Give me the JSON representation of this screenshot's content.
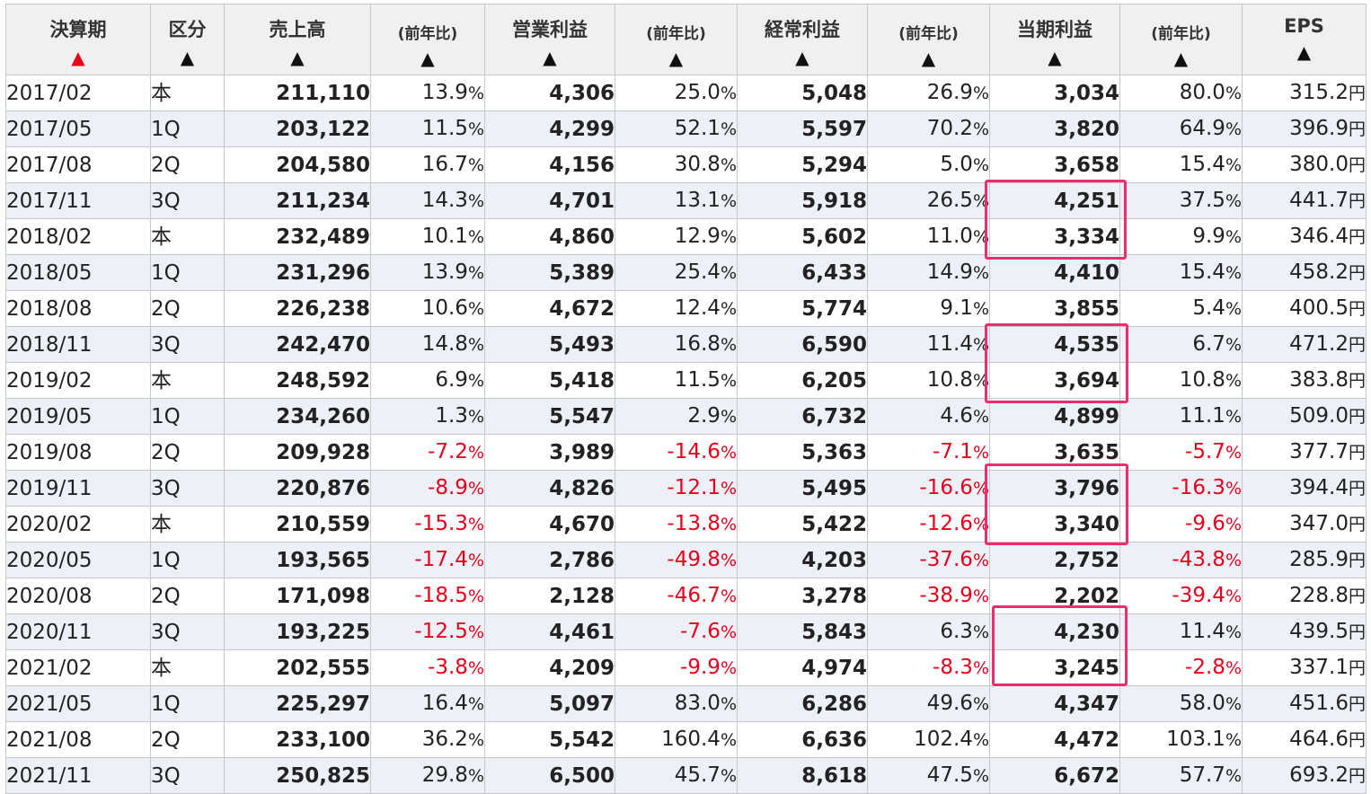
{
  "headers": {
    "period": "決算期",
    "kubun": "区分",
    "sales": "売上高",
    "sales_yoy": "(前年比)",
    "op_profit": "営業利益",
    "op_yoy": "(前年比)",
    "ord_profit": "経常利益",
    "ord_yoy": "(前年比)",
    "net_profit": "当期利益",
    "net_yoy": "(前年比)",
    "eps": "EPS",
    "sort_arrow": "▲"
  },
  "colors": {
    "negative": "#e5001c",
    "highlight": "#ef2d6e",
    "active_sort": "#e5001c"
  },
  "units": {
    "percent": "%",
    "yen": "円"
  },
  "rows": [
    {
      "period": "2017/02",
      "kubun": "本",
      "sales": "211,110",
      "sales_yoy": "13.9",
      "op": "4,306",
      "op_yoy": "25.0",
      "ord": "5,048",
      "ord_yoy": "26.9",
      "net": "3,034",
      "net_yoy": "80.0",
      "eps": "315.2"
    },
    {
      "period": "2017/05",
      "kubun": "1Q",
      "sales": "203,122",
      "sales_yoy": "11.5",
      "op": "4,299",
      "op_yoy": "52.1",
      "ord": "5,597",
      "ord_yoy": "70.2",
      "net": "3,820",
      "net_yoy": "64.9",
      "eps": "396.9"
    },
    {
      "period": "2017/08",
      "kubun": "2Q",
      "sales": "204,580",
      "sales_yoy": "16.7",
      "op": "4,156",
      "op_yoy": "30.8",
      "ord": "5,294",
      "ord_yoy": "5.0",
      "net": "3,658",
      "net_yoy": "15.4",
      "eps": "380.0"
    },
    {
      "period": "2017/11",
      "kubun": "3Q",
      "sales": "211,234",
      "sales_yoy": "14.3",
      "op": "4,701",
      "op_yoy": "13.1",
      "ord": "5,918",
      "ord_yoy": "26.5",
      "net": "4,251",
      "net_yoy": "37.5",
      "eps": "441.7"
    },
    {
      "period": "2018/02",
      "kubun": "本",
      "sales": "232,489",
      "sales_yoy": "10.1",
      "op": "4,860",
      "op_yoy": "12.9",
      "ord": "5,602",
      "ord_yoy": "11.0",
      "net": "3,334",
      "net_yoy": "9.9",
      "eps": "346.4"
    },
    {
      "period": "2018/05",
      "kubun": "1Q",
      "sales": "231,296",
      "sales_yoy": "13.9",
      "op": "5,389",
      "op_yoy": "25.4",
      "ord": "6,433",
      "ord_yoy": "14.9",
      "net": "4,410",
      "net_yoy": "15.4",
      "eps": "458.2"
    },
    {
      "period": "2018/08",
      "kubun": "2Q",
      "sales": "226,238",
      "sales_yoy": "10.6",
      "op": "4,672",
      "op_yoy": "12.4",
      "ord": "5,774",
      "ord_yoy": "9.1",
      "net": "3,855",
      "net_yoy": "5.4",
      "eps": "400.5"
    },
    {
      "period": "2018/11",
      "kubun": "3Q",
      "sales": "242,470",
      "sales_yoy": "14.8",
      "op": "5,493",
      "op_yoy": "16.8",
      "ord": "6,590",
      "ord_yoy": "11.4",
      "net": "4,535",
      "net_yoy": "6.7",
      "eps": "471.2"
    },
    {
      "period": "2019/02",
      "kubun": "本",
      "sales": "248,592",
      "sales_yoy": "6.9",
      "op": "5,418",
      "op_yoy": "11.5",
      "ord": "6,205",
      "ord_yoy": "10.8",
      "net": "3,694",
      "net_yoy": "10.8",
      "eps": "383.8"
    },
    {
      "period": "2019/05",
      "kubun": "1Q",
      "sales": "234,260",
      "sales_yoy": "1.3",
      "op": "5,547",
      "op_yoy": "2.9",
      "ord": "6,732",
      "ord_yoy": "4.6",
      "net": "4,899",
      "net_yoy": "11.1",
      "eps": "509.0"
    },
    {
      "period": "2019/08",
      "kubun": "2Q",
      "sales": "209,928",
      "sales_yoy": "-7.2",
      "op": "3,989",
      "op_yoy": "-14.6",
      "ord": "5,363",
      "ord_yoy": "-7.1",
      "net": "3,635",
      "net_yoy": "-5.7",
      "eps": "377.7"
    },
    {
      "period": "2019/11",
      "kubun": "3Q",
      "sales": "220,876",
      "sales_yoy": "-8.9",
      "op": "4,826",
      "op_yoy": "-12.1",
      "ord": "5,495",
      "ord_yoy": "-16.6",
      "net": "3,796",
      "net_yoy": "-16.3",
      "eps": "394.4"
    },
    {
      "period": "2020/02",
      "kubun": "本",
      "sales": "210,559",
      "sales_yoy": "-15.3",
      "op": "4,670",
      "op_yoy": "-13.8",
      "ord": "5,422",
      "ord_yoy": "-12.6",
      "net": "3,340",
      "net_yoy": "-9.6",
      "eps": "347.0"
    },
    {
      "period": "2020/05",
      "kubun": "1Q",
      "sales": "193,565",
      "sales_yoy": "-17.4",
      "op": "2,786",
      "op_yoy": "-49.8",
      "ord": "4,203",
      "ord_yoy": "-37.6",
      "net": "2,752",
      "net_yoy": "-43.8",
      "eps": "285.9"
    },
    {
      "period": "2020/08",
      "kubun": "2Q",
      "sales": "171,098",
      "sales_yoy": "-18.5",
      "op": "2,128",
      "op_yoy": "-46.7",
      "ord": "3,278",
      "ord_yoy": "-38.9",
      "net": "2,202",
      "net_yoy": "-39.4",
      "eps": "228.8"
    },
    {
      "period": "2020/11",
      "kubun": "3Q",
      "sales": "193,225",
      "sales_yoy": "-12.5",
      "op": "4,461",
      "op_yoy": "-7.6",
      "ord": "5,843",
      "ord_yoy": "6.3",
      "net": "4,230",
      "net_yoy": "11.4",
      "eps": "439.5"
    },
    {
      "period": "2021/02",
      "kubun": "本",
      "sales": "202,555",
      "sales_yoy": "-3.8",
      "op": "4,209",
      "op_yoy": "-9.9",
      "ord": "4,974",
      "ord_yoy": "-8.3",
      "net": "3,245",
      "net_yoy": "-2.8",
      "eps": "337.1"
    },
    {
      "period": "2021/05",
      "kubun": "1Q",
      "sales": "225,297",
      "sales_yoy": "16.4",
      "op": "5,097",
      "op_yoy": "83.0",
      "ord": "6,286",
      "ord_yoy": "49.6",
      "net": "4,347",
      "net_yoy": "58.0",
      "eps": "451.6"
    },
    {
      "period": "2021/08",
      "kubun": "2Q",
      "sales": "233,100",
      "sales_yoy": "36.2",
      "op": "5,542",
      "op_yoy": "160.4",
      "ord": "6,636",
      "ord_yoy": "102.4",
      "net": "4,472",
      "net_yoy": "103.1",
      "eps": "464.6"
    },
    {
      "period": "2021/11",
      "kubun": "3Q",
      "sales": "250,825",
      "sales_yoy": "29.8",
      "op": "6,500",
      "op_yoy": "45.7",
      "ord": "8,618",
      "ord_yoy": "47.5",
      "net": "6,672",
      "net_yoy": "57.7",
      "eps": "693.2"
    }
  ],
  "highlights": [
    {
      "label": "highlight-2017-11-2018-02"
    },
    {
      "label": "highlight-2018-11-2019-02"
    },
    {
      "label": "highlight-2019-11-2020-02"
    },
    {
      "label": "highlight-2020-11-2021-02"
    }
  ]
}
